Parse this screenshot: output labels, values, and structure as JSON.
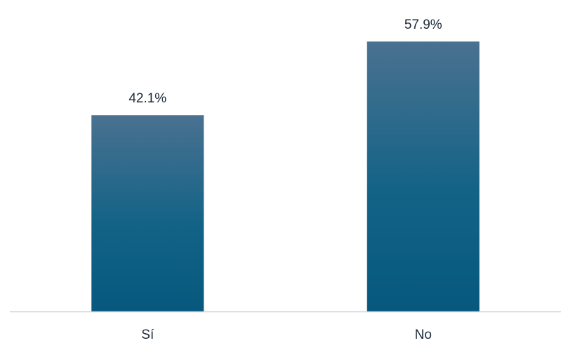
{
  "chart_data": {
    "type": "bar",
    "categories": [
      "Sí",
      "No"
    ],
    "values": [
      42.1,
      57.9
    ],
    "value_labels": [
      "42.1%",
      "57.9%"
    ],
    "unit": "%",
    "title": "",
    "xlabel": "",
    "ylabel": "",
    "ylim": [
      0,
      62.3
    ],
    "grid": false,
    "legend": "none",
    "colors": {
      "bar_top": "#4a7190",
      "bar_bottom": "#07587e",
      "axis": "#c9d6e6",
      "text": "#1e2b3a"
    }
  }
}
